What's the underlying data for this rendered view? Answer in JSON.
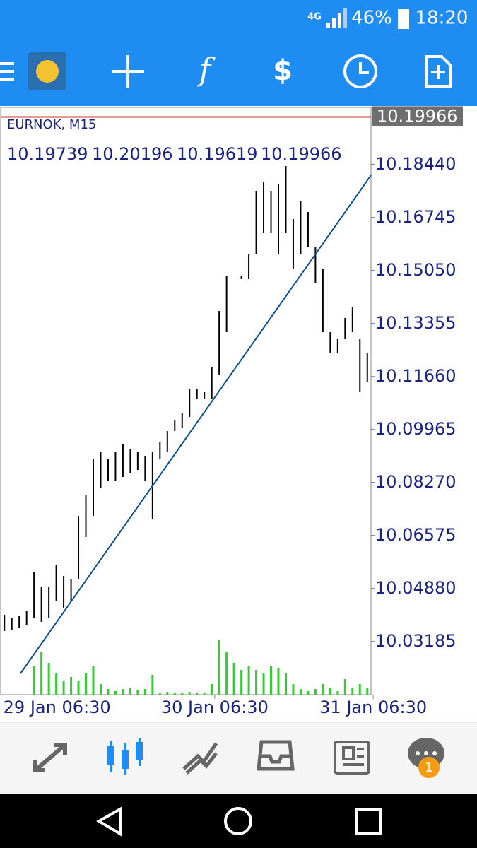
{
  "status_bar": {
    "network": "4G",
    "battery": "46%",
    "time": "18:20"
  },
  "chart_data": {
    "type": "ohlc",
    "symbol": "EURNOK, M15",
    "quote": [
      "10.19739",
      "10.20196",
      "10.19619",
      "10.19966"
    ],
    "highs": [
      10.04044,
      10.03931,
      10.03999,
      10.04157,
      10.054,
      10.04948,
      10.04948,
      10.05626,
      10.05287,
      10.05174,
      10.07208,
      10.07886,
      10.09016,
      10.09242,
      10.09016,
      10.09242,
      10.09513,
      10.09355,
      10.09242,
      10.09129,
      10.09242,
      10.09581,
      10.0992,
      10.10259,
      10.10485,
      10.11276,
      10.11276,
      10.11163,
      10.11954,
      10.13762,
      10.14892,
      10.14779,
      10.14892,
      10.1557,
      10.17604,
      10.17875,
      10.17604,
      10.1783,
      10.18395,
      10.167,
      10.17265,
      10.16926,
      10.15796,
      10.15118,
      10.13084,
      10.12858,
      10.13536,
      10.13875,
      10.12858,
      10.12406
    ],
    "lows": [
      10.03524,
      10.03547,
      10.03637,
      10.03705,
      10.03931,
      10.03818,
      10.03931,
      10.04496,
      10.0427,
      10.04496,
      10.05174,
      10.0653,
      10.07208,
      10.08112,
      10.08338,
      10.08338,
      10.08451,
      10.08564,
      10.08677,
      10.08338,
      10.07095,
      10.09016,
      10.09242,
      10.0992,
      10.10033,
      10.10372,
      10.10937,
      10.10937,
      10.10937,
      10.11728,
      10.13084,
      10.14779,
      10.14779,
      10.14779,
      10.1557,
      10.16248,
      10.16248,
      10.1557,
      10.16248,
      10.15118,
      10.1557,
      10.15796,
      10.14666,
      10.13084,
      10.12406,
      10.12406,
      10.12858,
      10.13084,
      10.11163,
      10.11502
    ],
    "volumes": [
      0,
      0,
      0,
      0,
      40,
      60,
      45,
      30,
      20,
      25,
      20,
      30,
      40,
      15,
      8,
      5,
      8,
      10,
      6,
      8,
      28,
      3,
      4,
      3,
      3,
      4,
      3,
      3,
      15,
      78,
      60,
      45,
      35,
      40,
      35,
      30,
      40,
      38,
      30,
      15,
      8,
      5,
      8,
      15,
      10,
      5,
      22,
      10,
      15,
      10
    ],
    "vlim": [
      0,
      100
    ],
    "ylim": [
      10.0149,
      10.2027
    ],
    "yticks": [
      {
        "value": 10.03185,
        "label": "10.03185"
      },
      {
        "value": 10.0488,
        "label": "10.04880"
      },
      {
        "value": 10.06575,
        "label": "10.06575"
      },
      {
        "value": 10.0827,
        "label": "10.08270"
      },
      {
        "value": 10.09965,
        "label": "10.09965"
      },
      {
        "value": 10.1166,
        "label": "10.11660"
      },
      {
        "value": 10.13355,
        "label": "10.13355"
      },
      {
        "value": 10.1505,
        "label": "10.15050"
      },
      {
        "value": 10.16745,
        "label": "10.16745"
      },
      {
        "value": 10.1844,
        "label": "10.18440"
      }
    ],
    "xlim": [
      0,
      50
    ],
    "xticks": [
      {
        "value": 7.6,
        "label": "29 Jan 06:30"
      },
      {
        "value": 28.9,
        "label": "30 Jan 06:30"
      },
      {
        "value": 50.3,
        "label": "31 Jan 06:30"
      }
    ],
    "price_line": {
      "value": 10.19966,
      "label": "10.19966"
    },
    "trend_line": {
      "x": [
        2.67,
        50
      ],
      "y": [
        10.02168,
        10.18101
      ]
    },
    "colors": {
      "bar": "#000000",
      "volume": "#33cc33",
      "trend": "#0d4f8b",
      "price": "#c0392b"
    }
  },
  "bottom_nav": {
    "badge": "1"
  }
}
